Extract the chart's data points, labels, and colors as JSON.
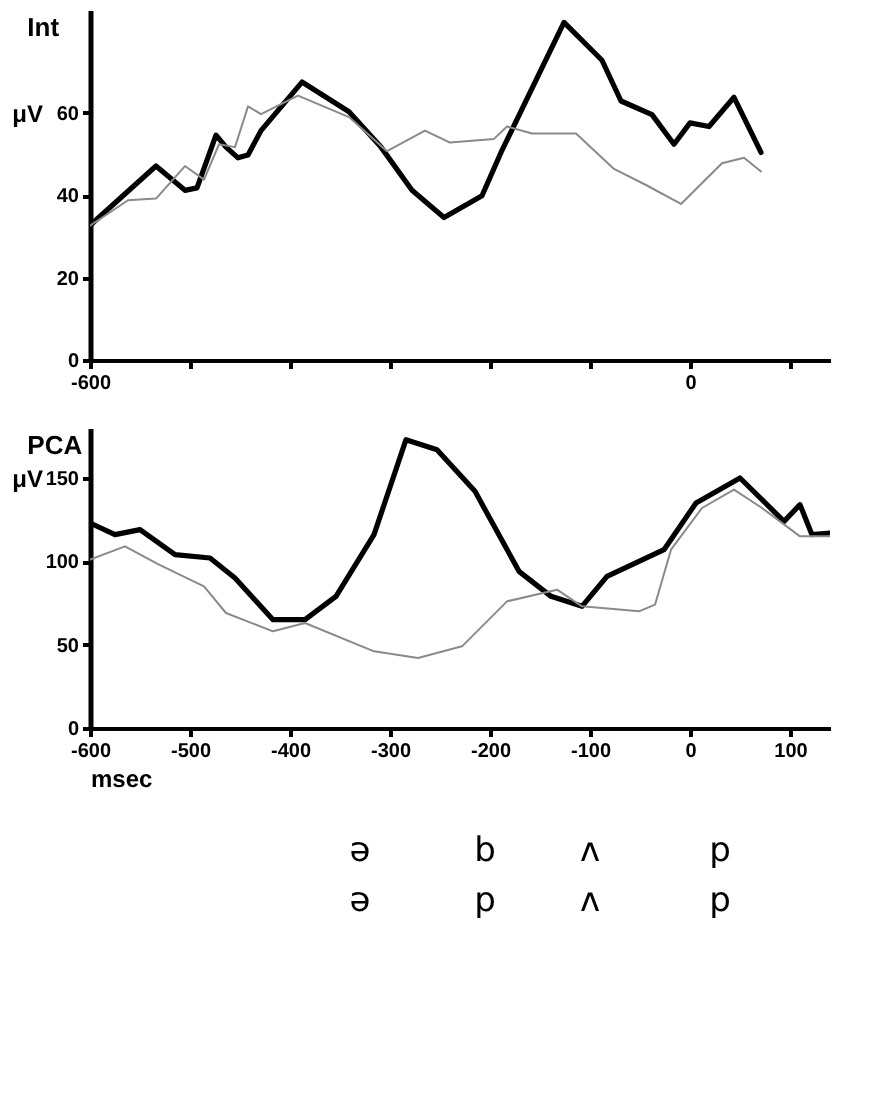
{
  "chart_data": [
    {
      "type": "line",
      "title": "Int",
      "ylabel": "μV",
      "xlim": [
        -600,
        140
      ],
      "ylim": [
        0,
        85
      ],
      "xticks": [
        -600,
        {
          "value": -500,
          "label": null
        },
        {
          "value": -400,
          "label": null
        },
        {
          "value": -300,
          "label": null
        },
        {
          "value": -200,
          "label": null
        },
        {
          "value": -100,
          "label": null
        },
        0,
        {
          "value": 100,
          "label": null
        }
      ],
      "yticks": [
        0,
        20,
        40,
        60
      ],
      "grid": false,
      "marker": "none",
      "series": [
        {
          "color": "#000000",
          "x": [
            -600,
            -594,
            -534,
            -505,
            -493,
            -474,
            -464,
            -452,
            -442,
            -429,
            -388,
            -341,
            -309,
            -278,
            -246,
            -208,
            -189,
            -126,
            -88,
            -69,
            -38,
            -16,
            0,
            19,
            44,
            71
          ],
          "values": [
            32.6,
            34,
            47.1,
            41.2,
            41.8,
            54.6,
            51.7,
            49.1,
            49.8,
            55.7,
            67.5,
            60.3,
            51.7,
            41.2,
            34.6,
            39.9,
            50.4,
            82,
            72.8,
            62.9,
            59.6,
            52.4,
            57.6,
            56.7,
            63.8,
            50.4
          ]
        },
        {
          "color": "#8a8a8a",
          "line_style": "solid",
          "x": [
            -600,
            -562,
            -534,
            -505,
            -486,
            -471,
            -455,
            -442,
            -429,
            -392,
            -341,
            -303,
            -265,
            -240,
            -196,
            -183,
            -158,
            -114,
            -76,
            -44,
            -9,
            32,
            54,
            71
          ],
          "values": [
            32.6,
            38.8,
            39.2,
            47.1,
            43.8,
            52.4,
            51.7,
            61.6,
            59.7,
            64.2,
            59,
            50.7,
            55.7,
            52.8,
            53.7,
            56.7,
            55,
            55,
            46.4,
            42.5,
            37.9,
            47.8,
            49.1,
            45.8
          ]
        }
      ]
    },
    {
      "type": "line",
      "title": "PCA",
      "ylabel": "μV",
      "xlabel": "msec",
      "xlim": [
        -600,
        140
      ],
      "ylim": [
        0,
        180
      ],
      "xticks": [
        -600,
        -500,
        -400,
        -300,
        -200,
        -100,
        0,
        100
      ],
      "yticks": [
        0,
        50,
        100,
        150
      ],
      "grid": false,
      "marker": "none",
      "annotations": [
        "ə",
        "b",
        "ʌ",
        "p",
        "ə",
        "p",
        "ʌ",
        "p"
      ],
      "series": [
        {
          "color": "#000000",
          "x": [
            -600,
            -575,
            -550,
            -515,
            -480,
            -455,
            -417,
            -385,
            -354,
            -316,
            -284,
            -253,
            -215,
            -171,
            -139,
            -108,
            -83,
            -26,
            6,
            50,
            94,
            110,
            122,
            140
          ],
          "values": [
            123,
            116,
            119,
            104,
            102,
            90,
            65,
            65,
            79,
            116,
            173,
            167,
            142,
            94,
            79,
            73,
            91,
            107,
            135,
            150,
            124,
            134,
            116,
            117
          ]
        },
        {
          "color": "#8a8a8a",
          "x": [
            -600,
            -565,
            -531,
            -486,
            -464,
            -417,
            -385,
            -316,
            -272,
            -228,
            -183,
            -133,
            -108,
            -51,
            -35,
            -19,
            12,
            44,
            72,
            110,
            140
          ],
          "values": [
            101,
            109,
            98,
            85,
            69,
            58,
            63,
            46,
            42,
            49,
            76,
            83,
            73,
            70,
            74,
            107,
            132,
            143,
            132,
            115,
            115
          ]
        }
      ]
    }
  ]
}
